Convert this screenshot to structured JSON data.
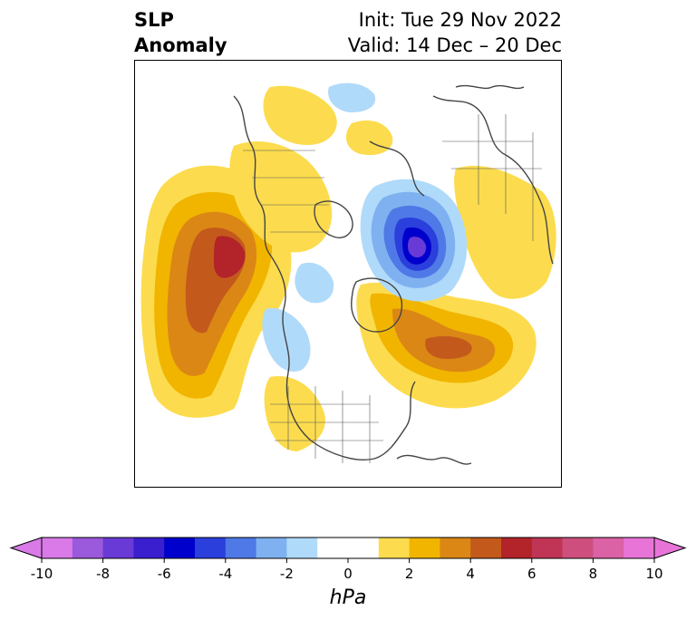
{
  "title": {
    "left_line1": "SLP",
    "left_line2": "Anomaly",
    "right_line1": "Init: Tue 29 Nov 2022",
    "right_line2": "Valid: 14 Dec – 20 Dec"
  },
  "colorbar": {
    "unit": "hPa",
    "ticks": [
      "-10",
      "-8",
      "-6",
      "-4",
      "-2",
      "0",
      "2",
      "4",
      "6",
      "8",
      "10"
    ],
    "levels": [
      -10,
      -9,
      -8,
      -7,
      -6,
      -5,
      -4,
      -3,
      -2,
      -1,
      1,
      2,
      3,
      4,
      5,
      6,
      7,
      8,
      9,
      10
    ],
    "colors": [
      "#d97ae8",
      "#9b59dc",
      "#6a3ad6",
      "#3a1fcf",
      "#0000cc",
      "#2b3fdc",
      "#4f79e6",
      "#7fb1f0",
      "#b0dafa",
      "#ffffff",
      "#fcdc4e",
      "#f1b500",
      "#db8716",
      "#c35a1c",
      "#b3232a",
      "#c03555",
      "#ce4f7e",
      "#da62a5",
      "#e874d8"
    ],
    "under_color": "#d97ae8",
    "over_color": "#e874d8"
  },
  "map": {
    "projection": "north-polar-stereographic",
    "field": "sea-level-pressure-anomaly"
  }
}
